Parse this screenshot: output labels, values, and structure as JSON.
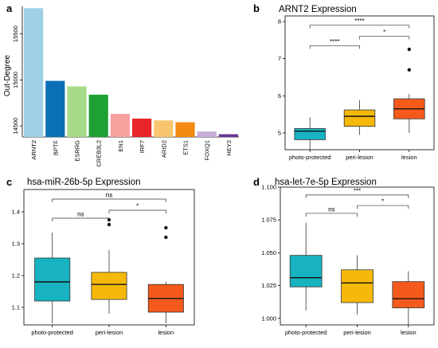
{
  "chart_data": [
    {
      "panel_label": "a",
      "type": "bar",
      "ylabel": "Out-Degree",
      "yticks": [
        14500,
        15000,
        15500
      ],
      "ylim": [
        14380,
        15800
      ],
      "categories": [
        "ARNT2",
        "BPTF",
        "ESRRG",
        "CREB3L2",
        "EN1",
        "IRF7",
        "ARID2",
        "ETS1",
        "FOXQ1",
        "HEY2"
      ],
      "values": [
        15780,
        14990,
        14930,
        14840,
        14630,
        14580,
        14560,
        14540,
        14440,
        14410
      ],
      "colors": [
        "#9dd0e6",
        "#0a6fb5",
        "#a6dc89",
        "#1ea133",
        "#f7a19e",
        "#e6262b",
        "#f8c66e",
        "#f28a13",
        "#c9b0d6",
        "#6a3594"
      ],
      "grid": false
    },
    {
      "panel_label": "b",
      "type": "box",
      "title": "ARNT2 Expression",
      "categories": [
        "photo-protected",
        "peri-lesion",
        "lesion"
      ],
      "yticks": [
        5,
        6,
        7,
        8
      ],
      "ylim": [
        4.55,
        8.15
      ],
      "boxes": [
        {
          "whisker_low": 4.55,
          "q1": 4.82,
          "median": 5.05,
          "q3": 5.12,
          "whisker_high": 5.42,
          "outliers": []
        },
        {
          "whisker_low": 4.95,
          "q1": 5.18,
          "median": 5.45,
          "q3": 5.62,
          "whisker_high": 5.88,
          "outliers": []
        },
        {
          "whisker_low": 5.0,
          "q1": 5.38,
          "median": 5.65,
          "q3": 5.92,
          "whisker_high": 6.05,
          "outliers": [
            6.7,
            7.25
          ]
        }
      ],
      "colors": [
        "#17b3c0",
        "#f6b90a",
        "#f55a1c"
      ],
      "comparisons": [
        {
          "from": 0,
          "to": 1,
          "label": "****",
          "y": 7.35
        },
        {
          "from": 1,
          "to": 2,
          "label": "*",
          "y": 7.6
        },
        {
          "from": 0,
          "to": 2,
          "label": "****",
          "y": 7.9
        }
      ],
      "grid": false
    },
    {
      "panel_label": "c",
      "type": "box",
      "title": "hsa-miR-26b-5p Expression",
      "categories": [
        "photo-protected",
        "peri-lesion",
        "lesion"
      ],
      "yticks": [
        1.1,
        1.2,
        1.3,
        1.4
      ],
      "ylim": [
        1.045,
        1.47
      ],
      "boxes": [
        {
          "whisker_low": 1.05,
          "q1": 1.12,
          "median": 1.18,
          "q3": 1.255,
          "whisker_high": 1.335,
          "outliers": []
        },
        {
          "whisker_low": 1.08,
          "q1": 1.125,
          "median": 1.172,
          "q3": 1.21,
          "whisker_high": 1.28,
          "outliers": [
            1.36,
            1.375
          ]
        },
        {
          "whisker_low": 1.05,
          "q1": 1.085,
          "median": 1.128,
          "q3": 1.172,
          "whisker_high": 1.18,
          "outliers": [
            1.32,
            1.35
          ]
        }
      ],
      "colors": [
        "#17b3c0",
        "#f6b90a",
        "#f55a1c"
      ],
      "comparisons": [
        {
          "from": 0,
          "to": 1,
          "label": "ns",
          "y": 1.38
        },
        {
          "from": 1,
          "to": 2,
          "label": "*",
          "y": 1.405
        },
        {
          "from": 0,
          "to": 2,
          "label": "ns",
          "y": 1.44
        }
      ],
      "grid": false
    },
    {
      "panel_label": "d",
      "type": "box",
      "title": "hsa-let-7e-5p Expression",
      "categories": [
        "photo-protected",
        "peri-lesion",
        "lesion"
      ],
      "yticks": [
        "1.000",
        "1.025",
        "1.050",
        "1.075",
        "1.100"
      ],
      "ylim": [
        0.995,
        1.1
      ],
      "boxes": [
        {
          "whisker_low": 1.006,
          "q1": 1.024,
          "median": 1.031,
          "q3": 1.048,
          "whisker_high": 1.073,
          "outliers": []
        },
        {
          "whisker_low": 1.003,
          "q1": 1.012,
          "median": 1.027,
          "q3": 1.037,
          "whisker_high": 1.048,
          "outliers": []
        },
        {
          "whisker_low": 0.995,
          "q1": 1.008,
          "median": 1.015,
          "q3": 1.028,
          "whisker_high": 1.036,
          "outliers": []
        }
      ],
      "colors": [
        "#17b3c0",
        "#f6b90a",
        "#f55a1c"
      ],
      "comparisons": [
        {
          "from": 0,
          "to": 1,
          "label": "ns",
          "y": 1.08
        },
        {
          "from": 1,
          "to": 2,
          "label": "*",
          "y": 1.086
        },
        {
          "from": 0,
          "to": 2,
          "label": "***",
          "y": 1.094
        }
      ],
      "grid": false
    }
  ]
}
